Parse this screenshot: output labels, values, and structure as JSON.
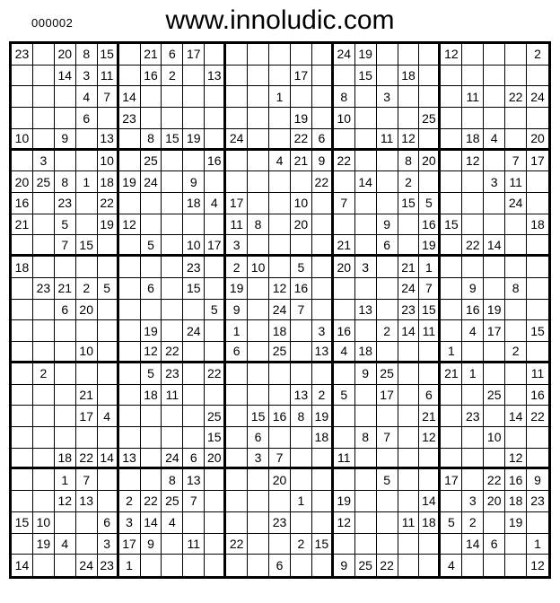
{
  "header": {
    "serial": "000002",
    "title": "www.innoludic.com"
  },
  "grid": {
    "rows": 25,
    "cols": 25,
    "box_rows": 5,
    "box_cols": 5,
    "line_color": "#000000",
    "bold_line_color": "#000000",
    "background": "#ffffff",
    "text_color": "#000000",
    "cells": [
      [
        "23",
        "",
        "20",
        "8",
        "15",
        "",
        "21",
        "6",
        "17",
        "",
        "",
        "",
        "",
        "",
        "",
        "24",
        "19",
        "",
        "",
        "",
        "12",
        "",
        "",
        "",
        "2"
      ],
      [
        "",
        "",
        "14",
        "3",
        "11",
        "",
        "16",
        "2",
        "",
        "13",
        "",
        "",
        "",
        "17",
        "",
        "",
        "15",
        "",
        "18",
        "",
        "",
        "",
        "",
        "",
        ""
      ],
      [
        "",
        "",
        "",
        "4",
        "7",
        "14",
        "",
        "",
        "",
        "",
        "",
        "",
        "1",
        "",
        "",
        "8",
        "",
        "3",
        "",
        "",
        "",
        "11",
        "",
        "22",
        "24"
      ],
      [
        "",
        "",
        "",
        "6",
        "",
        "23",
        "",
        "",
        "",
        "",
        "",
        "",
        "",
        "19",
        "",
        "10",
        "",
        "",
        "",
        "25",
        "",
        "",
        "",
        "",
        ""
      ],
      [
        "10",
        "",
        "9",
        "",
        "13",
        "",
        "8",
        "15",
        "19",
        "",
        "24",
        "",
        "",
        "22",
        "6",
        "",
        "",
        "11",
        "12",
        "",
        "",
        "18",
        "4",
        "",
        "20"
      ],
      [
        "",
        "3",
        "",
        "",
        "10",
        "",
        "25",
        "",
        "",
        "16",
        "",
        "",
        "4",
        "21",
        "9",
        "22",
        "",
        "",
        "8",
        "20",
        "",
        "12",
        "",
        "7",
        "17"
      ],
      [
        "20",
        "25",
        "8",
        "1",
        "18",
        "19",
        "24",
        "",
        "9",
        "",
        "",
        "",
        "",
        "",
        "22",
        "",
        "14",
        "",
        "2",
        "",
        "",
        "",
        "3",
        "11",
        ""
      ],
      [
        "16",
        "",
        "23",
        "",
        "22",
        "",
        "",
        "",
        "18",
        "4",
        "17",
        "",
        "",
        "10",
        "",
        "7",
        "",
        "",
        "15",
        "5",
        "",
        "",
        "",
        "24",
        ""
      ],
      [
        "21",
        "",
        "5",
        "",
        "19",
        "12",
        "",
        "",
        "",
        "",
        "11",
        "8",
        "",
        "20",
        "",
        "",
        "",
        "9",
        "",
        "16",
        "15",
        "",
        "",
        "",
        "18"
      ],
      [
        "",
        "",
        "7",
        "15",
        "",
        "",
        "5",
        "",
        "10",
        "17",
        "3",
        "",
        "",
        "",
        "",
        "21",
        "",
        "6",
        "",
        "19",
        "",
        "22",
        "14",
        "",
        ""
      ],
      [
        "18",
        "",
        "",
        "",
        "",
        "",
        "",
        "",
        "23",
        "",
        "2",
        "10",
        "",
        "5",
        "",
        "20",
        "3",
        "",
        "21",
        "1",
        "",
        "",
        "",
        "",
        ""
      ],
      [
        "",
        "23",
        "21",
        "2",
        "5",
        "",
        "6",
        "",
        "15",
        "",
        "19",
        "",
        "12",
        "16",
        "",
        "",
        "",
        "",
        "24",
        "7",
        "",
        "9",
        "",
        "8",
        ""
      ],
      [
        "",
        "",
        "6",
        "20",
        "",
        "",
        "",
        "",
        "",
        "5",
        "9",
        "",
        "24",
        "7",
        "",
        "",
        "13",
        "",
        "23",
        "15",
        "",
        "16",
        "19",
        "",
        ""
      ],
      [
        "",
        "",
        "",
        "",
        "",
        "",
        "19",
        "",
        "24",
        "",
        "1",
        "",
        "18",
        "",
        "3",
        "16",
        "",
        "2",
        "14",
        "11",
        "",
        "4",
        "17",
        "",
        "15"
      ],
      [
        "",
        "",
        "",
        "10",
        "",
        "",
        "12",
        "22",
        "",
        "",
        "6",
        "",
        "25",
        "",
        "13",
        "4",
        "18",
        "",
        "",
        "",
        "1",
        "",
        "",
        "2",
        ""
      ],
      [
        "",
        "2",
        "",
        "",
        "",
        "",
        "5",
        "23",
        "",
        "22",
        "",
        "",
        "",
        "",
        "",
        "",
        "9",
        "25",
        "",
        "",
        "21",
        "1",
        "",
        "",
        "11"
      ],
      [
        "",
        "",
        "",
        "21",
        "",
        "",
        "18",
        "11",
        "",
        "",
        "",
        "",
        "",
        "13",
        "2",
        "5",
        "",
        "17",
        "",
        "6",
        "",
        "",
        "25",
        "",
        "16"
      ],
      [
        "",
        "",
        "",
        "17",
        "4",
        "",
        "",
        "",
        "",
        "25",
        "",
        "15",
        "16",
        "8",
        "19",
        "",
        "",
        "",
        "",
        "21",
        "",
        "23",
        "",
        "14",
        "22"
      ],
      [
        "",
        "",
        "",
        "",
        "",
        "",
        "",
        "",
        "",
        "15",
        "",
        "6",
        "",
        "",
        "18",
        "",
        "8",
        "7",
        "",
        "12",
        "",
        "",
        "10",
        "",
        ""
      ],
      [
        "",
        "",
        "18",
        "22",
        "14",
        "13",
        "",
        "24",
        "6",
        "20",
        "",
        "3",
        "7",
        "",
        "",
        "11",
        "",
        "",
        "",
        "",
        "",
        "",
        "",
        "12",
        ""
      ],
      [
        "",
        "",
        "1",
        "7",
        "",
        "",
        "",
        "8",
        "13",
        "",
        "",
        "",
        "20",
        "",
        "",
        "",
        "",
        "5",
        "",
        "",
        "17",
        "",
        "22",
        "16",
        "9"
      ],
      [
        "",
        "",
        "12",
        "13",
        "",
        "2",
        "22",
        "25",
        "7",
        "",
        "",
        "",
        "",
        "1",
        "",
        "19",
        "",
        "",
        "",
        "14",
        "",
        "3",
        "20",
        "18",
        "23"
      ],
      [
        "15",
        "10",
        "",
        "",
        "6",
        "3",
        "14",
        "4",
        "",
        "",
        "",
        "",
        "23",
        "",
        "",
        "12",
        "",
        "",
        "11",
        "18",
        "5",
        "2",
        "",
        "19",
        ""
      ],
      [
        "",
        "19",
        "4",
        "",
        "3",
        "17",
        "9",
        "",
        "11",
        "",
        "22",
        "",
        "",
        "2",
        "15",
        "",
        "",
        "",
        "",
        "",
        "",
        "14",
        "6",
        "",
        "1"
      ],
      [
        "14",
        "",
        "",
        "24",
        "23",
        "1",
        "",
        "",
        "",
        "",
        "",
        "",
        "6",
        "",
        "",
        "9",
        "25",
        "22",
        "",
        "",
        "4",
        "",
        "",
        "",
        "12"
      ]
    ]
  }
}
